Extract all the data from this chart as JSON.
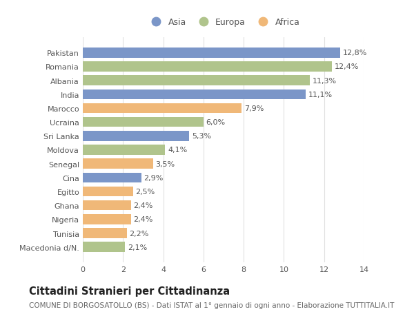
{
  "categories": [
    "Pakistan",
    "Romania",
    "Albania",
    "India",
    "Marocco",
    "Ucraina",
    "Sri Lanka",
    "Moldova",
    "Senegal",
    "Cina",
    "Egitto",
    "Ghana",
    "Nigeria",
    "Tunisia",
    "Macedonia d/N."
  ],
  "values": [
    12.8,
    12.4,
    11.3,
    11.1,
    7.9,
    6.0,
    5.3,
    4.1,
    3.5,
    2.9,
    2.5,
    2.4,
    2.4,
    2.2,
    2.1
  ],
  "labels": [
    "12,8%",
    "12,4%",
    "11,3%",
    "11,1%",
    "7,9%",
    "6,0%",
    "5,3%",
    "4,1%",
    "3,5%",
    "2,9%",
    "2,5%",
    "2,4%",
    "2,4%",
    "2,2%",
    "2,1%"
  ],
  "continents": [
    "Asia",
    "Europa",
    "Europa",
    "Asia",
    "Africa",
    "Europa",
    "Asia",
    "Europa",
    "Africa",
    "Asia",
    "Africa",
    "Africa",
    "Africa",
    "Africa",
    "Europa"
  ],
  "colors": {
    "Asia": "#7b96c8",
    "Europa": "#b0c48c",
    "Africa": "#f0b878"
  },
  "legend_labels": [
    "Asia",
    "Europa",
    "Africa"
  ],
  "title": "Cittadini Stranieri per Cittadinanza",
  "subtitle": "COMUNE DI BORGOSATOLLO (BS) - Dati ISTAT al 1° gennaio di ogni anno - Elaborazione TUTTITALIA.IT",
  "xlim": [
    0,
    14
  ],
  "xticks": [
    0,
    2,
    4,
    6,
    8,
    10,
    12,
    14
  ],
  "background_color": "#ffffff",
  "grid_color": "#e0e0e0",
  "title_fontsize": 10.5,
  "subtitle_fontsize": 7.5,
  "label_fontsize": 8,
  "tick_fontsize": 8,
  "legend_fontsize": 9
}
